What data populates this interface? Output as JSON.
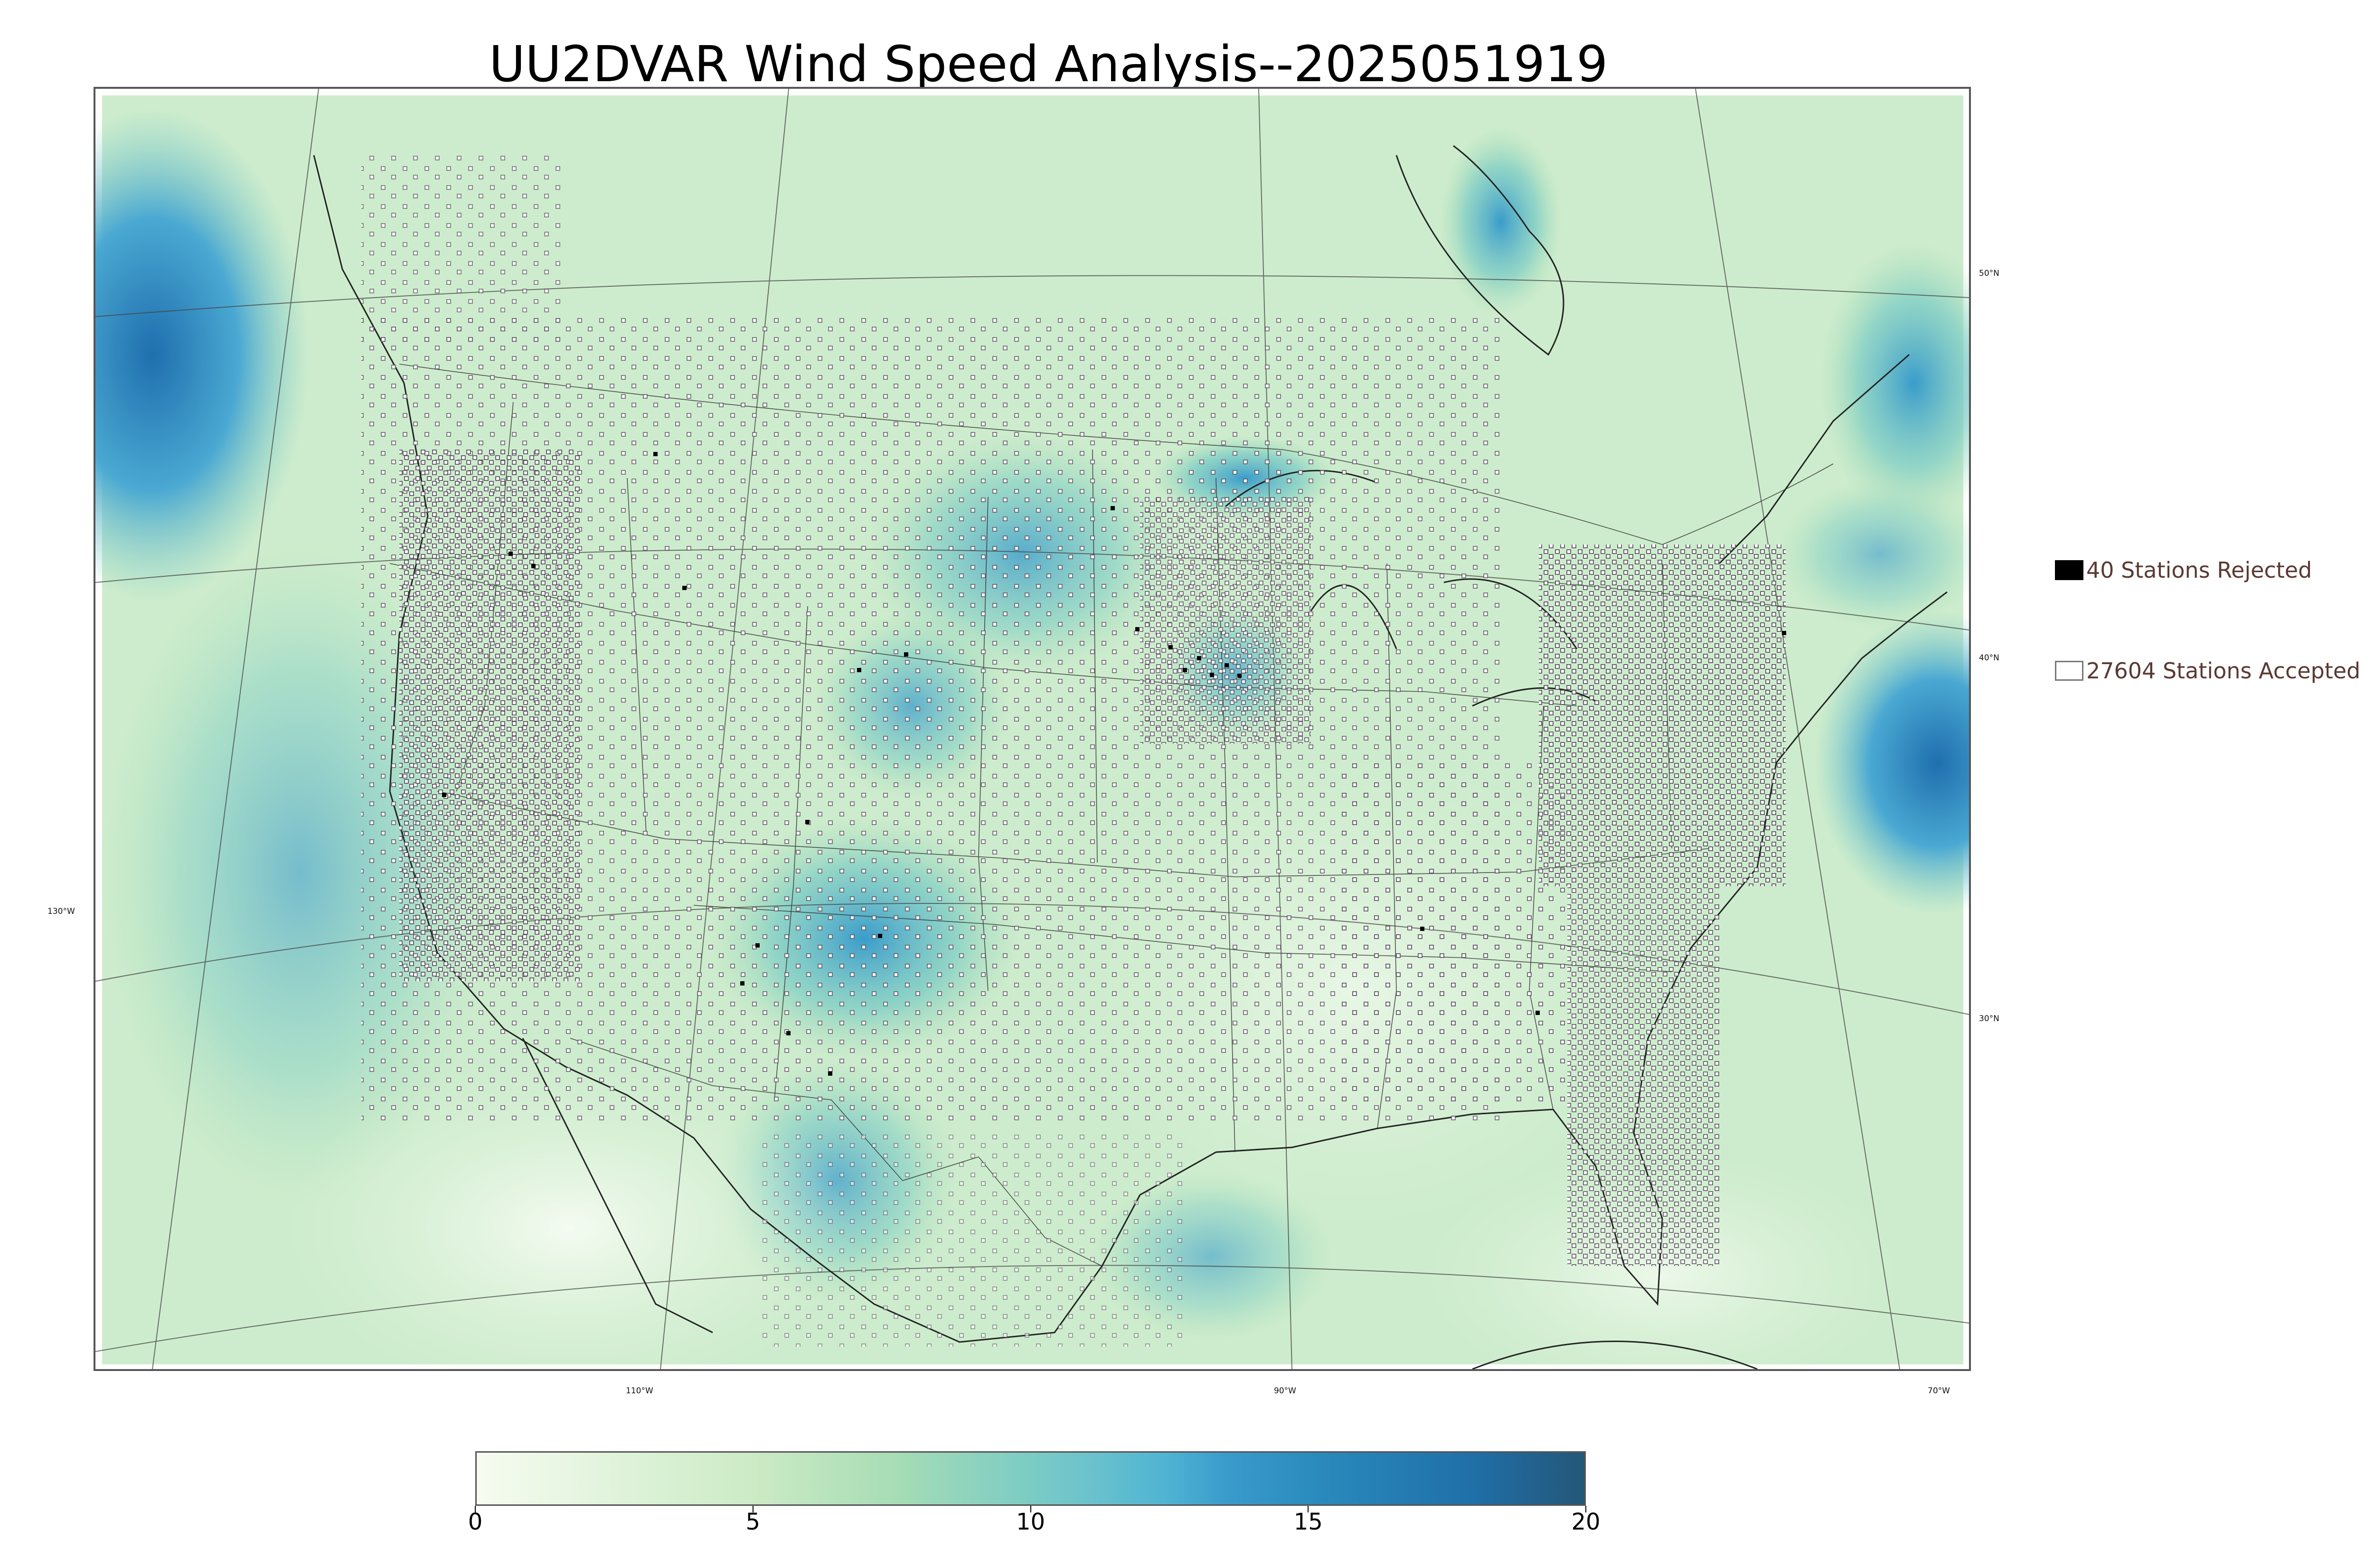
{
  "title": "UU2DVAR Wind Speed Analysis--2025051919",
  "map": {
    "lat_labels": [
      "50°N",
      "40°N",
      "30°N"
    ],
    "lon_labels": [
      "130°W",
      "110°W",
      "90°W",
      "70°W"
    ],
    "colors": {
      "background": "#cdeccd",
      "land_low": "#e8f6e4",
      "moderate": "#a6dcc0",
      "strong": "#4aa8d2",
      "strongest": "#1f6fae",
      "borders": "#333333"
    }
  },
  "legend": {
    "rejected_label": "40 Stations Rejected",
    "accepted_label": "27604 Stations Accepted",
    "rejected_color": "#000000",
    "accepted_color": "#ffffff"
  },
  "colorbar": {
    "min": 0,
    "max": 20,
    "ticks": [
      "0",
      "5",
      "10",
      "15",
      "20"
    ],
    "tick_values": [
      0,
      5,
      10,
      15,
      20
    ],
    "stops": [
      {
        "value": 0,
        "color": "#f7fcf0"
      },
      {
        "value": 2.5,
        "color": "#e0f3db"
      },
      {
        "value": 5,
        "color": "#ccebc5"
      },
      {
        "value": 7.5,
        "color": "#a8ddb5"
      },
      {
        "value": 10,
        "color": "#7bccc4"
      },
      {
        "value": 11,
        "color": "#6cc3cc"
      },
      {
        "value": 12.5,
        "color": "#4eb3d3"
      },
      {
        "value": 13.5,
        "color": "#3a9ccb"
      },
      {
        "value": 15,
        "color": "#2b8cbe"
      },
      {
        "value": 18,
        "color": "#1f6fa8"
      },
      {
        "value": 20,
        "color": "#245778"
      }
    ]
  }
}
